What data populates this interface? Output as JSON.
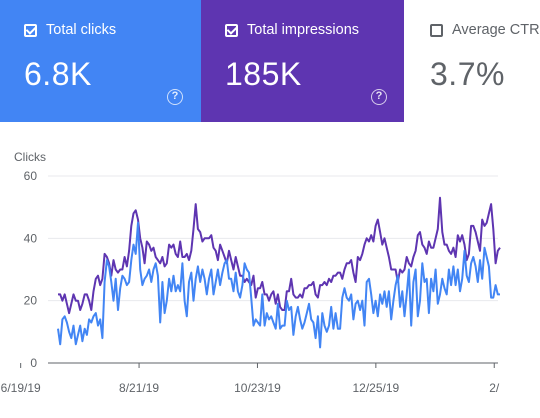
{
  "cards": {
    "clicks": {
      "label": "Total clicks",
      "value": "6.8K",
      "color": "#4285f4",
      "help_icon": "help-circle-icon"
    },
    "impressions": {
      "label": "Total impressions",
      "value": "185K",
      "color": "#5e35b1",
      "help_icon": "help-circle-icon"
    },
    "ctr": {
      "label": "Average CTR",
      "value": "3.7%"
    }
  },
  "chart_data": {
    "type": "line",
    "ylabel": "Clicks",
    "ylim": [
      0,
      60
    ],
    "y_ticks": [
      "0",
      "20",
      "40",
      "60"
    ],
    "x_tick_labels": [
      "6/19/19",
      "8/21/19",
      "10/23/19",
      "12/25/19",
      "2/"
    ],
    "x_range_days": [
      -11,
      254
    ],
    "x_tick_days": [
      0,
      63,
      126,
      189,
      252
    ],
    "grid": true,
    "series": [
      {
        "name": "Total clicks",
        "color": "#4285f4",
        "values": [
          11,
          6,
          14,
          15,
          13,
          10,
          8,
          12,
          6,
          9,
          12,
          7,
          11,
          9,
          14,
          13,
          15,
          16,
          12,
          14,
          8,
          26,
          33,
          31,
          26,
          20,
          27,
          17,
          24,
          28,
          27,
          25,
          26,
          33,
          38,
          35,
          45,
          30,
          25,
          27,
          28,
          30,
          26,
          30,
          32,
          28,
          13,
          26,
          16,
          20,
          27,
          23,
          28,
          23,
          25,
          23,
          32,
          20,
          15,
          26,
          29,
          20,
          27,
          31,
          26,
          30,
          27,
          22,
          27,
          30,
          22,
          26,
          30,
          25,
          29,
          32,
          33,
          27,
          27,
          23,
          29,
          23,
          21,
          25,
          32,
          30,
          29,
          21,
          12,
          14,
          13,
          12,
          22,
          12,
          16,
          14,
          15,
          13,
          11,
          19,
          11,
          12,
          12,
          20,
          17,
          18,
          9,
          15,
          18,
          14,
          11,
          13,
          16,
          19,
          14,
          13,
          8,
          15,
          5,
          16,
          12,
          10,
          12,
          18,
          11,
          16,
          11,
          11,
          21,
          24,
          21,
          20,
          22,
          14,
          19,
          20,
          17,
          20,
          12,
          26,
          27,
          22,
          16,
          20,
          15,
          22,
          19,
          23,
          18,
          23,
          14,
          20,
          25,
          28,
          18,
          23,
          15,
          22,
          30,
          12,
          26,
          30,
          15,
          20,
          32,
          26,
          27,
          16,
          27,
          23,
          30,
          19,
          22,
          27,
          24,
          22,
          30,
          25,
          31,
          25,
          30,
          23,
          27,
          36,
          28,
          26,
          32,
          34,
          31,
          26,
          33,
          27,
          37,
          34,
          31,
          21,
          21,
          25,
          22,
          22
        ]
      },
      {
        "name": "Total impressions",
        "color": "#5e35b1",
        "values": [
          22,
          22,
          20,
          22,
          19,
          16,
          19,
          22,
          20,
          20,
          17,
          19,
          22,
          22,
          20,
          17,
          23,
          27,
          28,
          25,
          27,
          35,
          34,
          32,
          28,
          33,
          30,
          29,
          30,
          30,
          34,
          31,
          36,
          44,
          48,
          49,
          46,
          40,
          37,
          32,
          39,
          38,
          36,
          37,
          34,
          33,
          32,
          34,
          31,
          32,
          38,
          37,
          38,
          35,
          34,
          39,
          34,
          34,
          35,
          33,
          36,
          43,
          51,
          43,
          42,
          39,
          40,
          40,
          40,
          41,
          37,
          36,
          33,
          38,
          36,
          34,
          32,
          36,
          33,
          30,
          34,
          31,
          28,
          28,
          26,
          27,
          26,
          25,
          28,
          21,
          24,
          24,
          26,
          22,
          22,
          20,
          22,
          23,
          19,
          22,
          18,
          17,
          17,
          23,
          23,
          27,
          22,
          21,
          21,
          22,
          21,
          24,
          24,
          25,
          25,
          26,
          22,
          21,
          25,
          25,
          26,
          25,
          27,
          26,
          28,
          28,
          29,
          29,
          27,
          30,
          32,
          32,
          33,
          29,
          26,
          34,
          33,
          35,
          38,
          40,
          39,
          41,
          39,
          44,
          46,
          42,
          38,
          40,
          37,
          34,
          30,
          30,
          30,
          26,
          30,
          29,
          30,
          34,
          32,
          31,
          34,
          36,
          41,
          42,
          38,
          37,
          35,
          39,
          37,
          37,
          40,
          43,
          53,
          42,
          38,
          38,
          36,
          35,
          37,
          34,
          41,
          39,
          41,
          38,
          33,
          35,
          44,
          44,
          42,
          39,
          36,
          46,
          44,
          45,
          48,
          51,
          43,
          32,
          36,
          37
        ]
      }
    ]
  }
}
